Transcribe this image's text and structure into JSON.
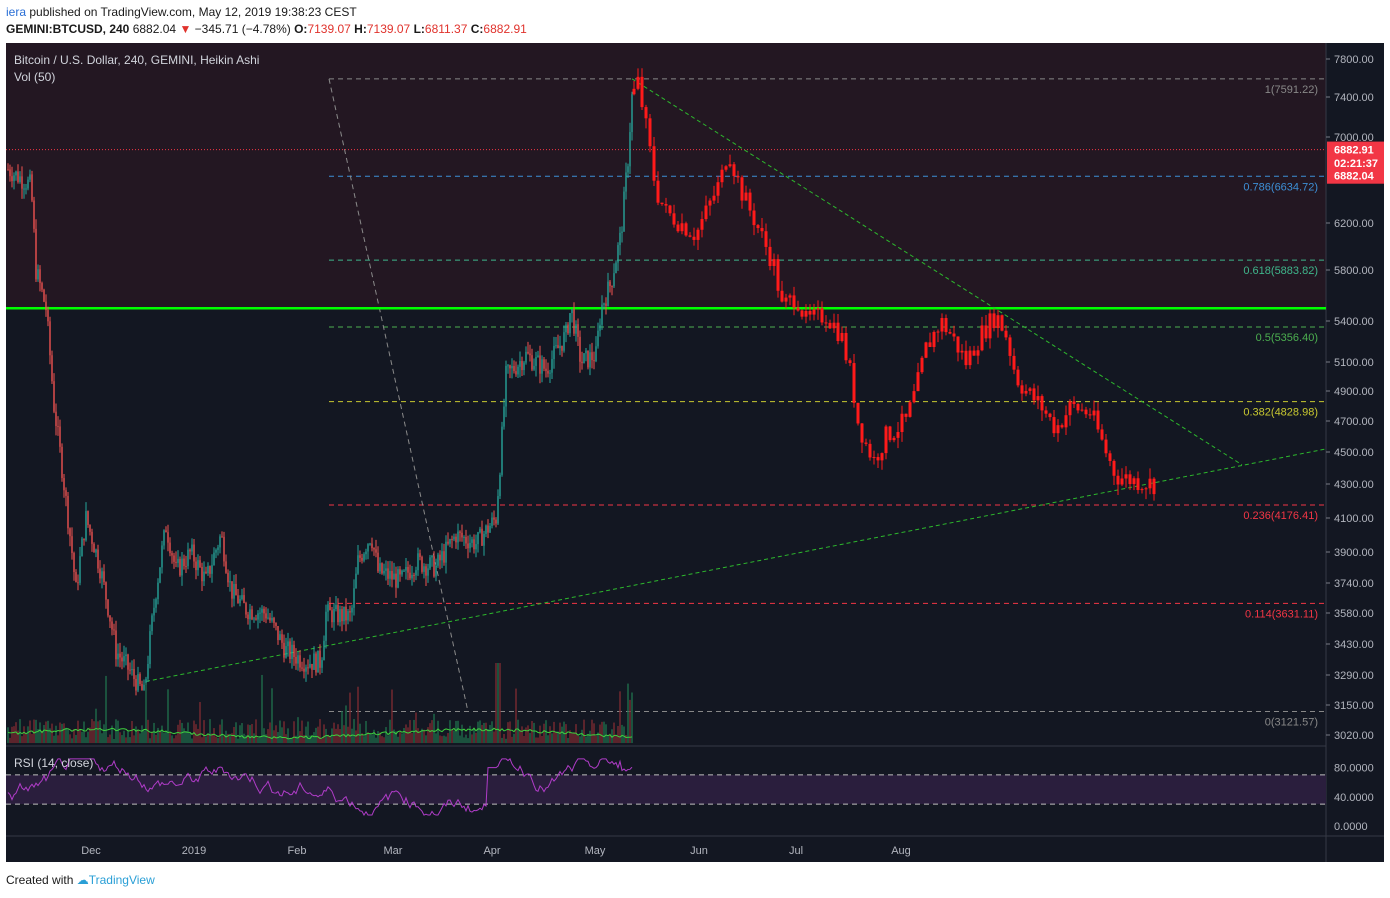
{
  "header": {
    "user": "iera",
    "published": "published on TradingView.com, May 12, 2019 19:38:23 CEST",
    "symbol": "GEMINI:BTCUSD, 240",
    "last": "6882.04",
    "arrow": "▼",
    "change": "−345.71 (−4.78%)",
    "o_label": "O:",
    "o": "7139.07",
    "h_label": "H:",
    "h": "7139.07",
    "l_label": "L:",
    "l": "6811.37",
    "c_label": "C:",
    "c": "6882.91"
  },
  "footer": {
    "created_with": "Created with",
    "brand": "TradingView"
  },
  "chart_data": {
    "type": "candlestick",
    "title": "Bitcoin / U.S. Dollar, 240, GEMINI, Heikin Ashi",
    "volume_label": "Vol (50)",
    "rsi_label": "RSI (14, close)",
    "x_ticks": [
      "Dec",
      "2019",
      "Feb",
      "Mar",
      "Apr",
      "May",
      "Jun",
      "Jul",
      "Aug"
    ],
    "price_ticks": [
      "7800.00",
      "7400.00",
      "7000.00",
      "6200.00",
      "5800.00",
      "5400.00",
      "5100.00",
      "4900.00",
      "4700.00",
      "4500.00",
      "4300.00",
      "4100.00",
      "3900.00",
      "3740.00",
      "3580.00",
      "3430.00",
      "3290.00",
      "3150.00",
      "3020.00"
    ],
    "rsi_ticks": [
      "80.0000",
      "40.0000",
      "0.0000"
    ],
    "price_markers": [
      {
        "label": "6882.91",
        "price": 6882.91,
        "color": "#f23645"
      },
      {
        "label": "02:21:37",
        "price": 6760,
        "color": "#f23645"
      },
      {
        "label": "6882.04",
        "price": 6640,
        "color": "#f23645"
      }
    ],
    "fib_levels": [
      {
        "label": "1(7591.22)",
        "price": 7591.22,
        "color": "#888888"
      },
      {
        "label": "0.786(6634.72)",
        "price": 6634.72,
        "color": "#3d8fd6"
      },
      {
        "label": "0.618(5883.82)",
        "price": 5883.82,
        "color": "#3fb68b"
      },
      {
        "label": "0.5(5356.40)",
        "price": 5356.4,
        "color": "#4caf50"
      },
      {
        "label": "0.382(4828.98)",
        "price": 4828.98,
        "color": "#c8c830"
      },
      {
        "label": "0.236(4176.41)",
        "price": 4176.41,
        "color": "#f23645"
      },
      {
        "label": "0.114(3631.11)",
        "price": 3631.11,
        "color": "#f23645"
      },
      {
        "label": "0(3121.57)",
        "price": 3121.57,
        "color": "#888888"
      }
    ],
    "resistance_price": 5500,
    "last_price": 6882.91,
    "rsi_bands": [
      70,
      30
    ],
    "colors": {
      "background": "#131722",
      "up": "#26a69a",
      "down": "#ef5350",
      "red": "#ff1a1a",
      "resistance": "#00ff00",
      "trend": "#2db82d",
      "rsi": "#b03cc8"
    }
  }
}
